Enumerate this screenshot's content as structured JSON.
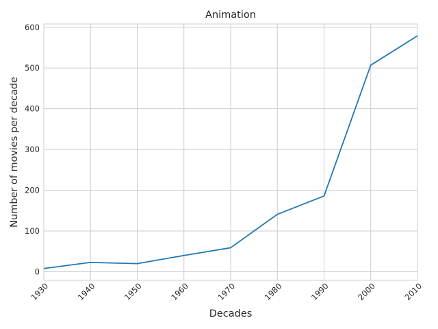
{
  "chart_data": {
    "type": "line",
    "title": "Animation",
    "xlabel": "Decades",
    "ylabel": "Number of movies per decade",
    "x": [
      1930,
      1940,
      1950,
      1960,
      1970,
      1980,
      1990,
      2000,
      2010
    ],
    "series": [
      {
        "values": [
          8,
          23,
          20,
          40,
          59,
          141,
          186,
          507,
          579
        ],
        "color": "#1f77b4"
      }
    ],
    "xlim": [
      1930,
      2010
    ],
    "ylim": [
      -21,
      608
    ],
    "xticks": [
      "1930",
      "1940",
      "1950",
      "1960",
      "1970",
      "1980",
      "1990",
      "2000",
      "2010"
    ],
    "yticks": [
      "0",
      "100",
      "200",
      "300",
      "400",
      "500",
      "600"
    ],
    "grid": true,
    "legend": "none"
  }
}
